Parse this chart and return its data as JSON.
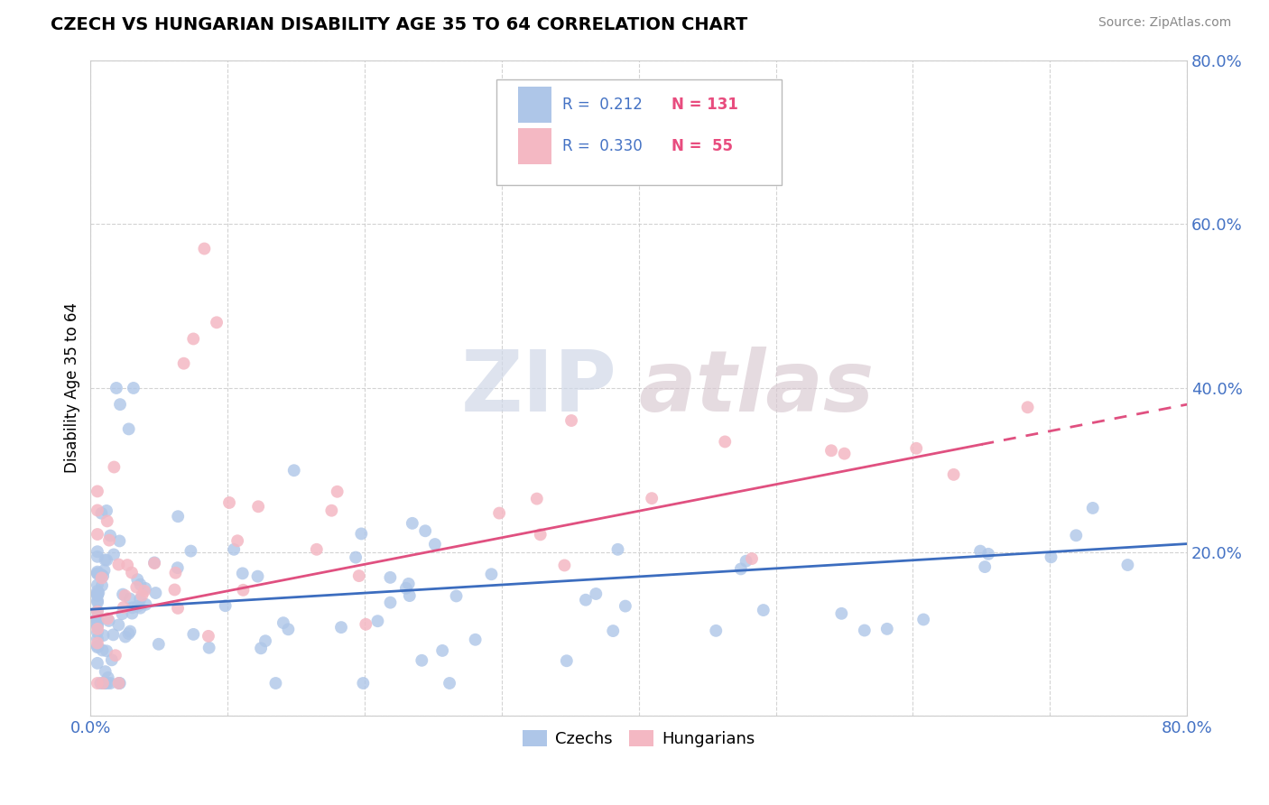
{
  "title": "CZECH VS HUNGARIAN DISABILITY AGE 35 TO 64 CORRELATION CHART",
  "source": "Source: ZipAtlas.com",
  "ylabel": "Disability Age 35 to 64",
  "xlim": [
    0.0,
    0.8
  ],
  "ylim": [
    0.0,
    0.8
  ],
  "xtick_labels": [
    "0.0%",
    "",
    "",
    "",
    "",
    "",
    "",
    "",
    "80.0%"
  ],
  "ytick_labels": [
    "",
    "20.0%",
    "40.0%",
    "60.0%",
    "80.0%"
  ],
  "legend_r_czech": "R =  0.212",
  "legend_n_czech": "N = 131",
  "legend_r_hungarian": "R =  0.330",
  "legend_n_hungarian": "N =  55",
  "czech_color": "#aec6e8",
  "hungarian_color": "#f4b8c3",
  "czech_line_color": "#3c6dbf",
  "hungarian_line_color": "#e05080",
  "watermark_zip": "ZIP",
  "watermark_atlas": "atlas",
  "background_color": "#ffffff",
  "grid_color": "#c8c8c8",
  "tick_color": "#4472c4",
  "label_color": "#555555"
}
